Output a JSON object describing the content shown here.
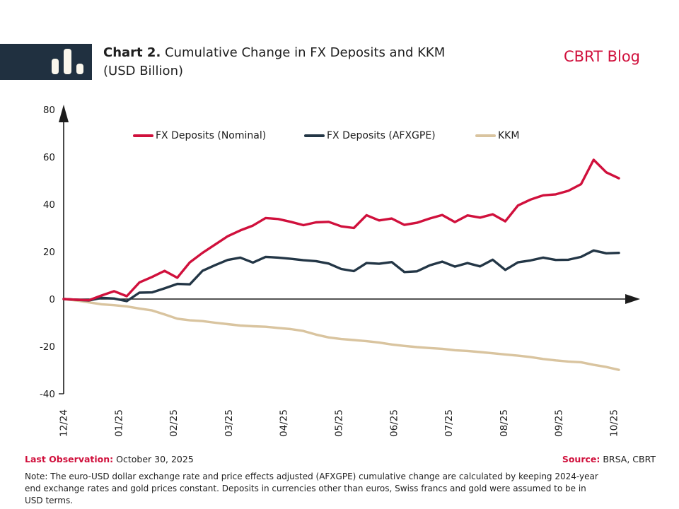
{
  "header": {
    "title_prefix": "Chart 2.",
    "title_rest": " Cumulative Change in FX Deposits and KKM",
    "title_line2": "(USD Billion)",
    "brand": "CBRT Blog"
  },
  "colors": {
    "accent_red": "#d0103c",
    "navy": "#233646",
    "tan": "#d9c49f",
    "header_box": "#203040"
  },
  "footer": {
    "last_observation_label": "Last Observation:",
    "last_observation_value": " October 30, 2025",
    "source_label": "Source:",
    "source_value": " BRSA, CBRT",
    "note": "Note: The euro-USD dollar exchange rate and price effects adjusted (AFXGPE) cumulative change are calculated by keeping 2024-year end exchange rates and gold prices constant. Deposits in currencies other than euros, Swiss francs and gold were assumed to be in USD terms."
  },
  "chart_data": {
    "type": "line",
    "title": "Cumulative Change in FX Deposits and KKM (USD Billion)",
    "x_unit": "weekly observations, Dec 2024 - Oct 30 2025",
    "x_tick_labels": [
      "12/24",
      "01/25",
      "02/25",
      "03/25",
      "04/25",
      "05/25",
      "06/25",
      "07/25",
      "08/25",
      "09/25",
      "10/25"
    ],
    "y_ticks": [
      80,
      60,
      40,
      20,
      0,
      -20,
      -40
    ],
    "ylim": [
      -40,
      80
    ],
    "grid": false,
    "legend_position": "top",
    "series": [
      {
        "name": "FX Deposits (Nominal)",
        "color": "#d0103c",
        "values": [
          0,
          -0.3,
          -0.5,
          1.5,
          3.3,
          1.2,
          7.0,
          9.3,
          11.9,
          9.0,
          15.5,
          19.5,
          23.0,
          26.5,
          29.0,
          31.0,
          34.2,
          33.8,
          32.6,
          31.2,
          32.4,
          32.6,
          30.7,
          30.0,
          35.4,
          33.2,
          34.0,
          31.3,
          32.2,
          34.0,
          35.5,
          32.5,
          35.3,
          34.4,
          35.8,
          32.8,
          39.5,
          42.0,
          43.8,
          44.2,
          45.7,
          48.5,
          58.8,
          53.5,
          51.0
        ]
      },
      {
        "name": "FX Deposits (AFXGPE)",
        "color": "#233646",
        "values": [
          0,
          -0.3,
          -0.6,
          0.5,
          0.2,
          -0.9,
          2.7,
          2.8,
          4.5,
          6.4,
          6.2,
          11.9,
          14.3,
          16.5,
          17.5,
          15.4,
          17.8,
          17.5,
          17.0,
          16.4,
          16.0,
          15.0,
          12.7,
          11.8,
          15.2,
          14.9,
          15.6,
          11.4,
          11.7,
          14.2,
          15.8,
          13.7,
          15.2,
          13.8,
          16.6,
          12.3,
          15.5,
          16.3,
          17.5,
          16.5,
          16.6,
          17.8,
          20.5,
          19.3,
          19.5
        ]
      },
      {
        "name": "KKM",
        "color": "#d9c49f",
        "values": [
          0,
          -0.6,
          -1.4,
          -2.2,
          -2.6,
          -3.1,
          -4.0,
          -4.8,
          -6.5,
          -8.3,
          -9.0,
          -9.3,
          -10.0,
          -10.6,
          -11.2,
          -11.5,
          -11.7,
          -12.2,
          -12.7,
          -13.5,
          -15.0,
          -16.2,
          -16.9,
          -17.3,
          -17.8,
          -18.4,
          -19.2,
          -19.8,
          -20.3,
          -20.7,
          -21.0,
          -21.6,
          -21.9,
          -22.4,
          -22.9,
          -23.4,
          -23.9,
          -24.5,
          -25.3,
          -25.9,
          -26.4,
          -26.7,
          -27.8,
          -28.7,
          -29.9
        ]
      }
    ]
  }
}
